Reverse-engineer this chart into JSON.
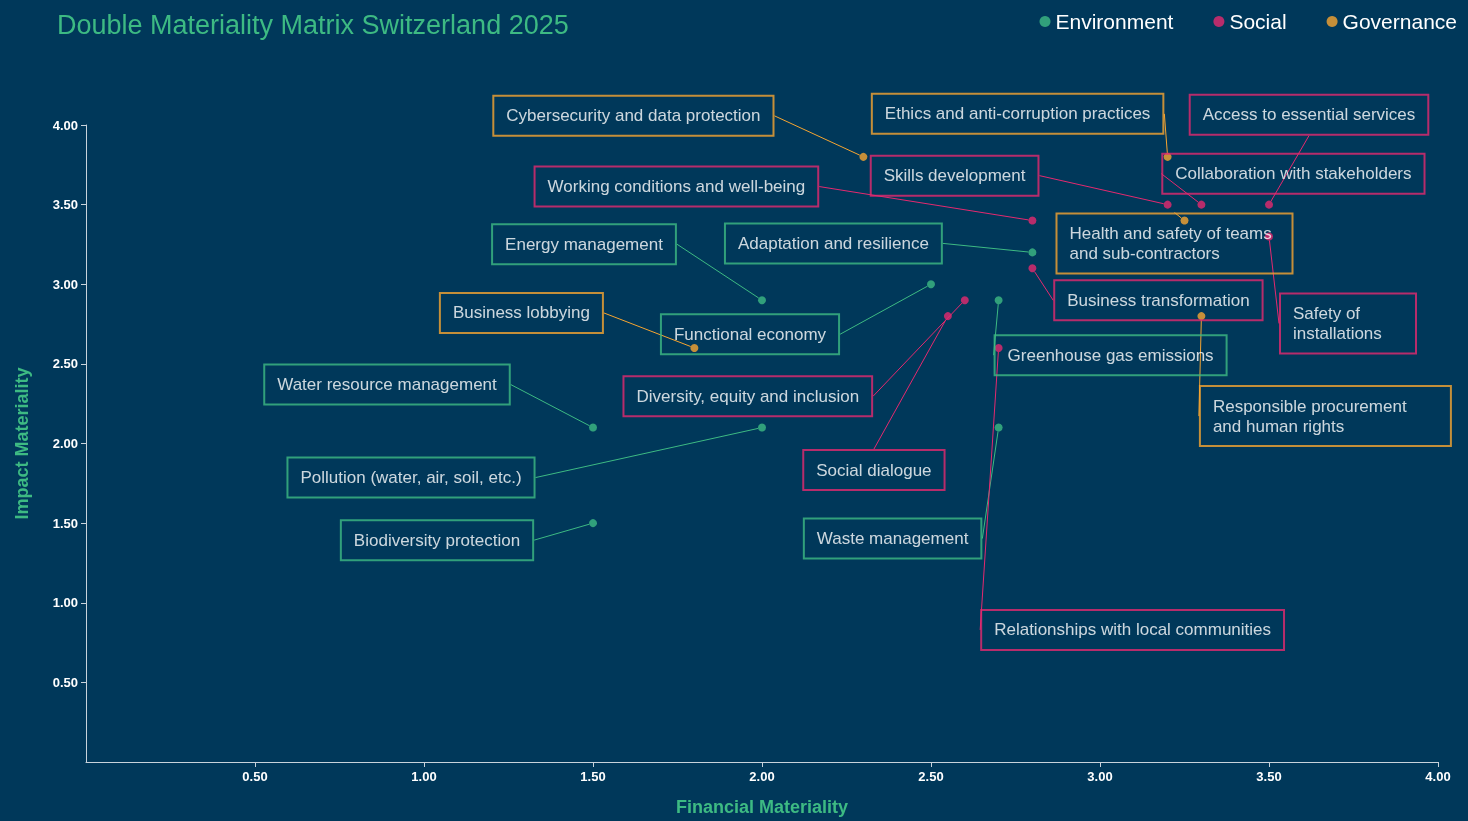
{
  "chart_data": {
    "type": "scatter",
    "title": "Double Materiality Matrix Switzerland 2025",
    "xlabel": "Financial Materiality",
    "ylabel": "Impact Materiality",
    "xlim": [
      0,
      4
    ],
    "ylim": [
      0,
      4
    ],
    "xticks": [
      {
        "value": 0.5,
        "label": "0.50"
      },
      {
        "value": 1,
        "label": "1.00"
      },
      {
        "value": 1.5,
        "label": "1.50"
      },
      {
        "value": 2,
        "label": "2.00"
      },
      {
        "value": 2.5,
        "label": "2.50"
      },
      {
        "value": 3,
        "label": "3.00"
      },
      {
        "value": 3.5,
        "label": "3.50"
      },
      {
        "value": 4,
        "label": "4.00"
      }
    ],
    "yticks": [
      {
        "value": 0.5,
        "label": "0.50"
      },
      {
        "value": 1,
        "label": "1.00"
      },
      {
        "value": 1.5,
        "label": "1.50"
      },
      {
        "value": 2,
        "label": "2.00"
      },
      {
        "value": 2.5,
        "label": "2.50"
      },
      {
        "value": 3,
        "label": "3.00"
      },
      {
        "value": 3.5,
        "label": "3.50"
      },
      {
        "value": 4,
        "label": "4.00"
      }
    ],
    "grid": false,
    "legend": "top right",
    "marker": "circle",
    "series": [
      {
        "name": "Environment",
        "color": "#3dba83",
        "x": [
          2.0,
          2.8,
          2.5,
          2.7,
          1.5,
          2.0,
          2.7,
          1.5
        ],
        "values": [
          2.9,
          3.2,
          3.0,
          2.9,
          2.1,
          2.1,
          2.1,
          1.5
        ],
        "value_labels": [
          "Energy management",
          "Adaptation and resilience",
          "Functional economy",
          "Greenhouse gas emissions",
          "Water resource management",
          "Pollution (water, air, soil, etc.)",
          "Waste management",
          "Biodiversity protection"
        ]
      },
      {
        "name": "Social",
        "color": "#e5296f",
        "x": [
          2.8,
          3.2,
          3.3,
          3.5,
          3.5,
          2.8,
          2.6,
          2.55,
          2.7
        ],
        "values": [
          3.4,
          3.5,
          3.5,
          3.5,
          3.3,
          3.1,
          2.9,
          2.8,
          2.6
        ],
        "value_labels": [
          "Working conditions and well-being",
          "Skills development",
          "Collaboration with stakeholders",
          "Access to essential services",
          "Safety of installations",
          "Business transformation",
          "Diversity, equity and inclusion",
          "Social dialogue",
          "Relationships with local communities"
        ]
      },
      {
        "name": "Governance",
        "color": "#f6a531",
        "x": [
          2.3,
          3.2,
          3.25,
          3.3,
          1.8
        ],
        "values": [
          3.8,
          3.8,
          3.4,
          2.8,
          2.6
        ],
        "value_labels": [
          "Cybersecurity and data protection",
          "Ethics and anti-corruption practices",
          "Health and safety of teams and sub-contractors",
          "Responsible procurement and human rights",
          "Business lobbying"
        ]
      }
    ]
  }
}
